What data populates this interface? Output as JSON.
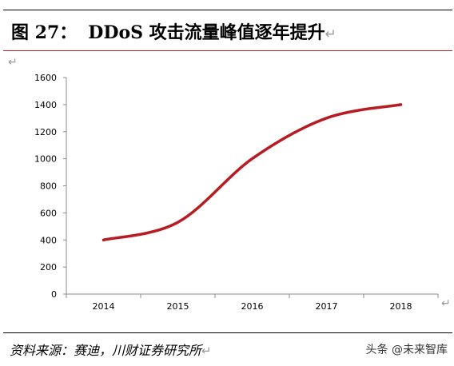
{
  "header": {
    "figure_label": "图 27：",
    "title": "DDoS 攻击流量峰值逐年提升",
    "return_mark": "↵"
  },
  "chart_data": {
    "type": "line",
    "title": "DDoS 攻击流量峰值逐年提升",
    "xlabel": "",
    "ylabel": "",
    "categories": [
      "2014",
      "2015",
      "2016",
      "2017",
      "2018"
    ],
    "series": [
      {
        "values": [
          400,
          530,
          1000,
          1300,
          1400
        ],
        "color": "#b81c22"
      }
    ],
    "ylim": [
      0,
      1600
    ],
    "yticks": [
      "0",
      "200",
      "400",
      "600",
      "800",
      "1000",
      "1200",
      "1400",
      "1600"
    ],
    "grid": false,
    "legend": "none"
  },
  "footer": {
    "source": "资料来源：赛迪，川财证券研究所",
    "watermark": "头条 @未来智库"
  }
}
